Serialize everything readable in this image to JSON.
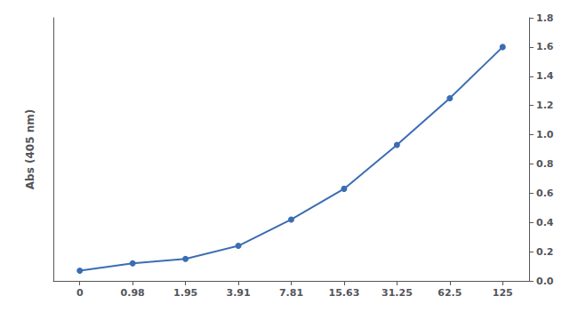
{
  "chart_data": {
    "type": "line",
    "ylabel": "Abs (405 nm)",
    "categories": [
      "0",
      "0.98",
      "1.95",
      "3.91",
      "7.81",
      "15.63",
      "31.25",
      "62.5",
      "125"
    ],
    "values": [
      0.07,
      0.12,
      0.15,
      0.24,
      0.42,
      0.63,
      0.93,
      1.25,
      1.6
    ],
    "color": "#3B6DB3",
    "marker": "circle",
    "ylim": [
      0.0,
      1.8
    ],
    "yticks": [
      {
        "value": 0.0,
        "label": "0.0"
      },
      0.2,
      0.4,
      0.6,
      0.8,
      {
        "value": 1.0,
        "label": "1.0"
      },
      1.2,
      1.4,
      1.6,
      1.8
    ],
    "grid": false
  }
}
